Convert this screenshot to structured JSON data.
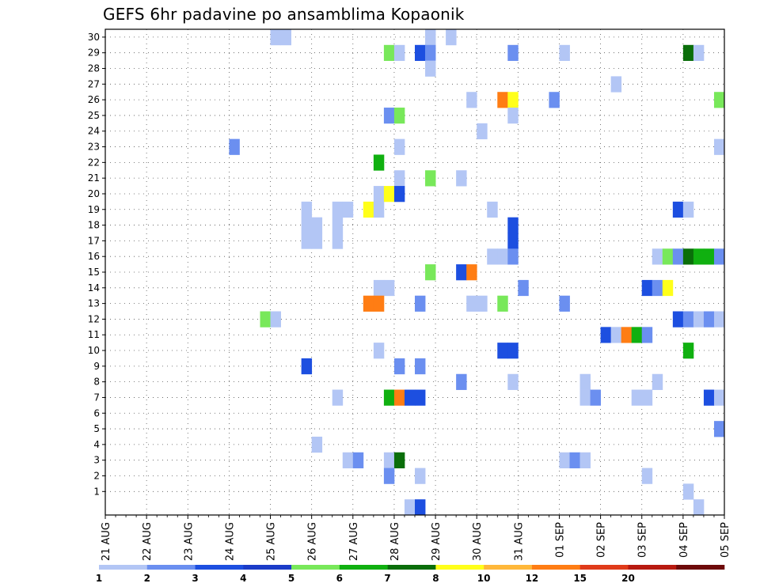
{
  "chart_data": {
    "type": "heatmap",
    "title": "GEFS 6hr padavine po ansamblima Kopaonik",
    "y_ticks": [
      "1",
      "2",
      "3",
      "4",
      "5",
      "6",
      "7",
      "8",
      "9",
      "10",
      "11",
      "12",
      "13",
      "14",
      "15",
      "16",
      "17",
      "18",
      "19",
      "20",
      "21",
      "22",
      "23",
      "24",
      "25",
      "26",
      "27",
      "28",
      "29",
      "30"
    ],
    "x_ticks": [
      "21 AUG",
      "22 AUG",
      "23 AUG",
      "24 AUG",
      "25 AUG",
      "26 AUG",
      "27 AUG",
      "28 AUG",
      "29 AUG",
      "30 AUG",
      "31 AUG",
      "01 SEP",
      "02 SEP",
      "03 SEP",
      "04 SEP",
      "05 SEP"
    ],
    "x_steps_per_day": 4,
    "grid": true,
    "colorbar": {
      "labels": [
        "1",
        "2",
        "3",
        "4",
        "5",
        "6",
        "7",
        "8",
        "10",
        "12",
        "15",
        "20"
      ],
      "colors": [
        "#b3c6f5",
        "#6b8ff0",
        "#1d4fe0",
        "#1b3cc8",
        "#78e85a",
        "#10b010",
        "#0a6e0a",
        "#ffff1a",
        "#ffb83a",
        "#ff7d14",
        "#e03b1a",
        "#b81a10",
        "#6e0a0a"
      ]
    },
    "cells": [
      {
        "m": 30,
        "t": 16,
        "c": 1
      },
      {
        "m": 30,
        "t": 17,
        "c": 1
      },
      {
        "m": 30,
        "t": 31,
        "c": 1
      },
      {
        "m": 30,
        "t": 33,
        "c": 1
      },
      {
        "m": 29,
        "t": 27,
        "c": 5
      },
      {
        "m": 29,
        "t": 28,
        "c": 1
      },
      {
        "m": 29,
        "t": 30,
        "c": 3
      },
      {
        "m": 29,
        "t": 31,
        "c": 2
      },
      {
        "m": 29,
        "t": 39,
        "c": 2
      },
      {
        "m": 29,
        "t": 44,
        "c": 1
      },
      {
        "m": 29,
        "t": 56,
        "c": 7
      },
      {
        "m": 29,
        "t": 57,
        "c": 1
      },
      {
        "m": 28,
        "t": 31,
        "c": 1
      },
      {
        "m": 27,
        "t": 49,
        "c": 1
      },
      {
        "m": 26,
        "t": 35,
        "c": 1
      },
      {
        "m": 26,
        "t": 38,
        "c": 10
      },
      {
        "m": 26,
        "t": 39,
        "c": 8
      },
      {
        "m": 26,
        "t": 43,
        "c": 2
      },
      {
        "m": 26,
        "t": 59,
        "c": 5
      },
      {
        "m": 25,
        "t": 27,
        "c": 2
      },
      {
        "m": 25,
        "t": 28,
        "c": 5
      },
      {
        "m": 25,
        "t": 39,
        "c": 1
      },
      {
        "m": 24,
        "t": 36,
        "c": 1
      },
      {
        "m": 23,
        "t": 12,
        "c": 2
      },
      {
        "m": 23,
        "t": 28,
        "c": 1
      },
      {
        "m": 23,
        "t": 59,
        "c": 1
      },
      {
        "m": 22,
        "t": 26,
        "c": 6
      },
      {
        "m": 21,
        "t": 28,
        "c": 1
      },
      {
        "m": 21,
        "t": 31,
        "c": 5
      },
      {
        "m": 21,
        "t": 34,
        "c": 1
      },
      {
        "m": 20,
        "t": 26,
        "c": 1
      },
      {
        "m": 20,
        "t": 27,
        "c": 8
      },
      {
        "m": 20,
        "t": 28,
        "c": 3
      },
      {
        "m": 19,
        "t": 19,
        "c": 1
      },
      {
        "m": 19,
        "t": 22,
        "c": 1
      },
      {
        "m": 19,
        "t": 23,
        "c": 1
      },
      {
        "m": 19,
        "t": 25,
        "c": 8
      },
      {
        "m": 19,
        "t": 26,
        "c": 1
      },
      {
        "m": 19,
        "t": 37,
        "c": 1
      },
      {
        "m": 19,
        "t": 55,
        "c": 3
      },
      {
        "m": 19,
        "t": 56,
        "c": 1
      },
      {
        "m": 18,
        "t": 19,
        "c": 1
      },
      {
        "m": 18,
        "t": 20,
        "c": 1
      },
      {
        "m": 18,
        "t": 22,
        "c": 1
      },
      {
        "m": 18,
        "t": 39,
        "c": 3
      },
      {
        "m": 17,
        "t": 19,
        "c": 1
      },
      {
        "m": 17,
        "t": 20,
        "c": 1
      },
      {
        "m": 17,
        "t": 22,
        "c": 1
      },
      {
        "m": 17,
        "t": 39,
        "c": 3
      },
      {
        "m": 16,
        "t": 37,
        "c": 1
      },
      {
        "m": 16,
        "t": 38,
        "c": 1
      },
      {
        "m": 16,
        "t": 39,
        "c": 2
      },
      {
        "m": 16,
        "t": 53,
        "c": 1
      },
      {
        "m": 16,
        "t": 54,
        "c": 5
      },
      {
        "m": 16,
        "t": 55,
        "c": 2
      },
      {
        "m": 16,
        "t": 56,
        "c": 7
      },
      {
        "m": 16,
        "t": 57,
        "c": 6
      },
      {
        "m": 16,
        "t": 58,
        "c": 6
      },
      {
        "m": 16,
        "t": 59,
        "c": 2
      },
      {
        "m": 15,
        "t": 31,
        "c": 5
      },
      {
        "m": 15,
        "t": 34,
        "c": 3
      },
      {
        "m": 15,
        "t": 35,
        "c": 10
      },
      {
        "m": 14,
        "t": 26,
        "c": 1
      },
      {
        "m": 14,
        "t": 27,
        "c": 1
      },
      {
        "m": 14,
        "t": 40,
        "c": 2
      },
      {
        "m": 14,
        "t": 52,
        "c": 3
      },
      {
        "m": 14,
        "t": 53,
        "c": 2
      },
      {
        "m": 14,
        "t": 54,
        "c": 8
      },
      {
        "m": 13,
        "t": 25,
        "c": 10
      },
      {
        "m": 13,
        "t": 26,
        "c": 10
      },
      {
        "m": 13,
        "t": 30,
        "c": 2
      },
      {
        "m": 13,
        "t": 35,
        "c": 1
      },
      {
        "m": 13,
        "t": 36,
        "c": 1
      },
      {
        "m": 13,
        "t": 38,
        "c": 5
      },
      {
        "m": 13,
        "t": 44,
        "c": 2
      },
      {
        "m": 12,
        "t": 15,
        "c": 5
      },
      {
        "m": 12,
        "t": 16,
        "c": 1
      },
      {
        "m": 12,
        "t": 55,
        "c": 3
      },
      {
        "m": 12,
        "t": 56,
        "c": 2
      },
      {
        "m": 12,
        "t": 57,
        "c": 1
      },
      {
        "m": 12,
        "t": 58,
        "c": 2
      },
      {
        "m": 12,
        "t": 59,
        "c": 1
      },
      {
        "m": 11,
        "t": 48,
        "c": 3
      },
      {
        "m": 11,
        "t": 49,
        "c": 1
      },
      {
        "m": 11,
        "t": 50,
        "c": 10
      },
      {
        "m": 11,
        "t": 51,
        "c": 6
      },
      {
        "m": 11,
        "t": 52,
        "c": 2
      },
      {
        "m": 10,
        "t": 26,
        "c": 1
      },
      {
        "m": 10,
        "t": 38,
        "c": 3
      },
      {
        "m": 10,
        "t": 39,
        "c": 3
      },
      {
        "m": 10,
        "t": 56,
        "c": 6
      },
      {
        "m": 9,
        "t": 19,
        "c": 3
      },
      {
        "m": 9,
        "t": 28,
        "c": 2
      },
      {
        "m": 9,
        "t": 30,
        "c": 2
      },
      {
        "m": 8,
        "t": 34,
        "c": 2
      },
      {
        "m": 8,
        "t": 39,
        "c": 1
      },
      {
        "m": 8,
        "t": 46,
        "c": 1
      },
      {
        "m": 8,
        "t": 53,
        "c": 1
      },
      {
        "m": 7,
        "t": 22,
        "c": 1
      },
      {
        "m": 7,
        "t": 27,
        "c": 6
      },
      {
        "m": 7,
        "t": 28,
        "c": 10
      },
      {
        "m": 7,
        "t": 29,
        "c": 3
      },
      {
        "m": 7,
        "t": 30,
        "c": 3
      },
      {
        "m": 7,
        "t": 46,
        "c": 1
      },
      {
        "m": 7,
        "t": 47,
        "c": 2
      },
      {
        "m": 7,
        "t": 51,
        "c": 1
      },
      {
        "m": 7,
        "t": 52,
        "c": 1
      },
      {
        "m": 7,
        "t": 58,
        "c": 3
      },
      {
        "m": 7,
        "t": 59,
        "c": 1
      },
      {
        "m": 5,
        "t": 59,
        "c": 2
      },
      {
        "m": 4,
        "t": 20,
        "c": 1
      },
      {
        "m": 3,
        "t": 23,
        "c": 1
      },
      {
        "m": 3,
        "t": 24,
        "c": 2
      },
      {
        "m": 3,
        "t": 27,
        "c": 1
      },
      {
        "m": 3,
        "t": 28,
        "c": 7
      },
      {
        "m": 3,
        "t": 44,
        "c": 1
      },
      {
        "m": 3,
        "t": 45,
        "c": 2
      },
      {
        "m": 3,
        "t": 46,
        "c": 1
      },
      {
        "m": 2,
        "t": 27,
        "c": 2
      },
      {
        "m": 2,
        "t": 30,
        "c": 1
      },
      {
        "m": 2,
        "t": 52,
        "c": 1
      },
      {
        "m": 1,
        "t": 56,
        "c": 1
      },
      {
        "m": 0,
        "t": 29,
        "c": 1
      },
      {
        "m": 0,
        "t": 30,
        "c": 3
      },
      {
        "m": 0,
        "t": 57,
        "c": 1
      }
    ]
  }
}
